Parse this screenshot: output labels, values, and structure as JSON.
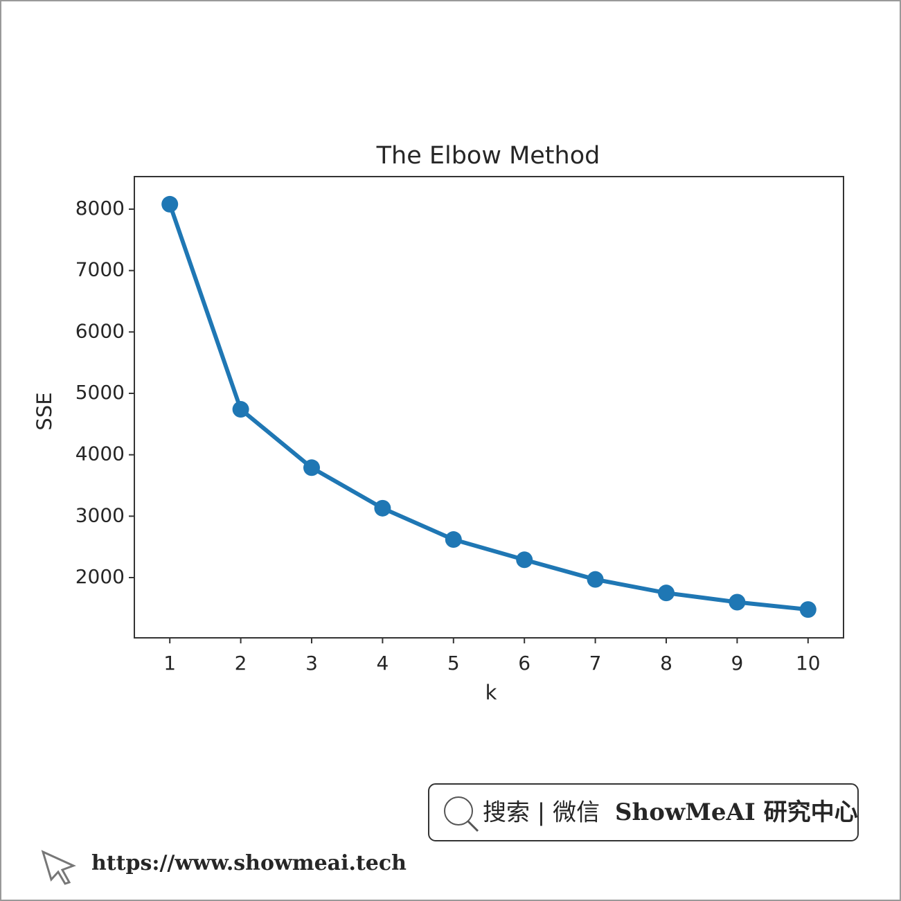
{
  "chart_data": {
    "type": "line",
    "title": "The Elbow Method",
    "x_label": "k",
    "y_label": "SSE",
    "x": [
      1,
      2,
      3,
      4,
      5,
      6,
      7,
      8,
      9,
      10
    ],
    "series": [
      {
        "name": "SSE",
        "color": "#1f77b4",
        "values": [
          8080,
          4740,
          3790,
          3130,
          2620,
          2290,
          1970,
          1750,
          1600,
          1480
        ]
      }
    ],
    "xlim": [
      0.5,
      10.5
    ],
    "xticks": [
      1,
      2,
      3,
      4,
      5,
      6,
      7,
      8,
      9,
      10
    ],
    "ylim": [
      1019,
      8530
    ],
    "yticks": [
      2000,
      3000,
      4000,
      5000,
      6000,
      7000,
      8000
    ],
    "grid": false,
    "markers": true
  },
  "watermark": {
    "search": "搜索 | 微信",
    "brand": "ShowMeAI 研究中心",
    "url": "https://www.showmeai.tech"
  }
}
